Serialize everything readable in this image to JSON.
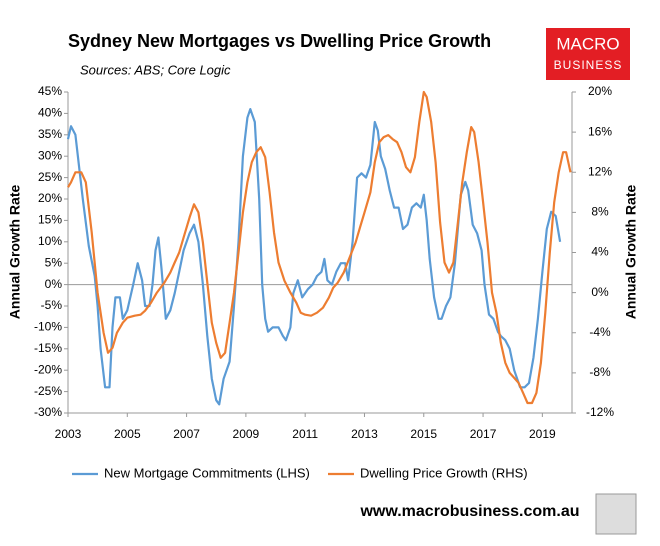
{
  "chart_data": {
    "type": "line",
    "title": "Sydney New Mortgages vs Dwelling Price Growth",
    "subtitle": "Sources: ABS; Core Logic",
    "logo": [
      "MACRO",
      "BUSINESS"
    ],
    "footer": "www.macrobusiness.com.au",
    "ylabel": "Annual Growth Rate",
    "y2label": "Annual Growth Rate",
    "xlim": [
      2003,
      2020
    ],
    "xticks": [
      2003,
      2005,
      2007,
      2009,
      2011,
      2013,
      2015,
      2017,
      2019
    ],
    "ylim": [
      -30,
      45
    ],
    "yticks": [
      {
        "value": 45,
        "label": "45%"
      },
      {
        "value": 40,
        "label": "40%"
      },
      {
        "value": 35,
        "label": "35%"
      },
      {
        "value": 30,
        "label": "30%"
      },
      {
        "value": 25,
        "label": "25%"
      },
      {
        "value": 20,
        "label": "20%"
      },
      {
        "value": 15,
        "label": "15%"
      },
      {
        "value": 10,
        "label": "10%"
      },
      {
        "value": 5,
        "label": "5%"
      },
      {
        "value": 0,
        "label": "0%"
      },
      {
        "value": -5,
        "label": "-5%"
      },
      {
        "value": -10,
        "label": "-10%"
      },
      {
        "value": -15,
        "label": "-15%"
      },
      {
        "value": -20,
        "label": "-20%"
      },
      {
        "value": -25,
        "label": "-25%"
      },
      {
        "value": -30,
        "label": "-30%"
      }
    ],
    "y2lim": [
      -12,
      20
    ],
    "y2ticks": [
      {
        "value": 20,
        "label": "20%"
      },
      {
        "value": 16,
        "label": "16%"
      },
      {
        "value": 12,
        "label": "12%"
      },
      {
        "value": 8,
        "label": "8%"
      },
      {
        "value": 4,
        "label": "4%"
      },
      {
        "value": 0,
        "label": "0%"
      },
      {
        "value": -4,
        "label": "-4%"
      },
      {
        "value": -8,
        "label": "-8%"
      },
      {
        "value": -12,
        "label": "-12%"
      }
    ],
    "legend": "bottom",
    "series": [
      {
        "name": "New Mortgage Commitments (LHS)",
        "color": "#5b9bd5",
        "axis": "y",
        "x": [
          2003.0,
          2003.1,
          2003.25,
          2003.5,
          2003.7,
          2003.9,
          2004.0,
          2004.1,
          2004.25,
          2004.4,
          2004.5,
          2004.6,
          2004.75,
          2004.85,
          2005.0,
          2005.2,
          2005.35,
          2005.5,
          2005.6,
          2005.75,
          2005.85,
          2005.95,
          2006.05,
          2006.15,
          2006.3,
          2006.45,
          2006.6,
          2006.75,
          2006.9,
          2007.1,
          2007.25,
          2007.4,
          2007.55,
          2007.7,
          2007.85,
          2008.0,
          2008.1,
          2008.25,
          2008.45,
          2008.6,
          2008.75,
          2008.9,
          2009.05,
          2009.15,
          2009.3,
          2009.45,
          2009.55,
          2009.65,
          2009.75,
          2009.9,
          2010.1,
          2010.25,
          2010.35,
          2010.5,
          2010.6,
          2010.75,
          2010.9,
          2011.1,
          2011.25,
          2011.4,
          2011.55,
          2011.65,
          2011.75,
          2011.9,
          2012.05,
          2012.2,
          2012.35,
          2012.45,
          2012.6,
          2012.75,
          2012.9,
          2013.05,
          2013.2,
          2013.35,
          2013.45,
          2013.55,
          2013.7,
          2013.85,
          2014.0,
          2014.15,
          2014.3,
          2014.45,
          2014.6,
          2014.75,
          2014.9,
          2015.0,
          2015.1,
          2015.2,
          2015.35,
          2015.5,
          2015.6,
          2015.75,
          2015.9,
          2016.05,
          2016.25,
          2016.4,
          2016.5,
          2016.65,
          2016.8,
          2016.95,
          2017.05,
          2017.2,
          2017.35,
          2017.5,
          2017.6,
          2017.75,
          2017.9,
          2018.05,
          2018.25,
          2018.4,
          2018.55,
          2018.7,
          2018.85,
          2019.0,
          2019.15,
          2019.3,
          2019.45,
          2019.6
        ],
        "values": [
          34,
          37,
          35,
          20,
          9,
          2,
          -5,
          -15,
          -24,
          -24,
          -10,
          -3,
          -3,
          -8,
          -6,
          0,
          5,
          1,
          -5,
          -5,
          0,
          8,
          11,
          4,
          -8,
          -6,
          -2,
          3,
          8,
          12,
          14,
          10,
          0,
          -12,
          -22,
          -27,
          -28,
          -22,
          -18,
          -5,
          10,
          30,
          39,
          41,
          38,
          20,
          0,
          -8,
          -11,
          -10,
          -10,
          -12,
          -13,
          -10,
          -2,
          1,
          -3,
          -1,
          0,
          2,
          3,
          6,
          1,
          0,
          3,
          5,
          5,
          1,
          10,
          25,
          26,
          25,
          28,
          38,
          36,
          30,
          27,
          22,
          18,
          18,
          13,
          14,
          18,
          19,
          18,
          21,
          15,
          6,
          -3,
          -8,
          -8,
          -5,
          -3,
          5,
          21,
          24,
          22,
          14,
          12,
          8,
          0,
          -7,
          -8,
          -11,
          -12,
          -13,
          -15,
          -20,
          -24,
          -24,
          -23,
          -17,
          -8,
          3,
          13,
          17,
          16,
          10
        ]
      },
      {
        "name": "Dwelling Price Growth (RHS)",
        "color": "#ed7d31",
        "axis": "y2",
        "x": [
          2003.0,
          2003.1,
          2003.25,
          2003.45,
          2003.6,
          2003.8,
          2004.0,
          2004.2,
          2004.35,
          2004.5,
          2004.65,
          2004.85,
          2005.0,
          2005.25,
          2005.45,
          2005.6,
          2005.8,
          2006.0,
          2006.25,
          2006.45,
          2006.6,
          2006.75,
          2006.9,
          2007.1,
          2007.25,
          2007.4,
          2007.55,
          2007.7,
          2007.85,
          2008.0,
          2008.15,
          2008.3,
          2008.45,
          2008.6,
          2008.75,
          2008.9,
          2009.05,
          2009.2,
          2009.35,
          2009.5,
          2009.65,
          2009.8,
          2009.95,
          2010.1,
          2010.3,
          2010.5,
          2010.7,
          2010.85,
          2011.0,
          2011.2,
          2011.4,
          2011.6,
          2011.8,
          2011.95,
          2012.1,
          2012.3,
          2012.5,
          2012.7,
          2012.85,
          2013.0,
          2013.2,
          2013.35,
          2013.5,
          2013.65,
          2013.8,
          2013.95,
          2014.1,
          2014.25,
          2014.4,
          2014.55,
          2014.7,
          2014.85,
          2015.0,
          2015.1,
          2015.25,
          2015.4,
          2015.55,
          2015.7,
          2015.85,
          2016.0,
          2016.15,
          2016.3,
          2016.45,
          2016.6,
          2016.7,
          2016.85,
          2017.0,
          2017.15,
          2017.3,
          2017.45,
          2017.6,
          2017.75,
          2017.9,
          2018.05,
          2018.2,
          2018.35,
          2018.5,
          2018.65,
          2018.8,
          2018.95,
          2019.1,
          2019.25,
          2019.4,
          2019.55,
          2019.7,
          2019.8,
          2019.95
        ],
        "values": [
          10.5,
          11,
          12,
          12,
          11,
          6,
          0,
          -4,
          -6,
          -5.5,
          -4,
          -3,
          -2.5,
          -2.3,
          -2.2,
          -1.8,
          -1,
          0,
          1,
          2,
          3,
          4,
          5.5,
          7.5,
          8.8,
          8,
          5,
          1,
          -3,
          -5,
          -6.5,
          -6,
          -3,
          0,
          4,
          8,
          11,
          13,
          14,
          14.5,
          13.5,
          10,
          6,
          3,
          1.2,
          0,
          -1,
          -2,
          -2.2,
          -2.3,
          -2,
          -1.5,
          -0.5,
          0.5,
          1,
          2,
          3.5,
          5,
          6.5,
          8,
          10,
          13,
          15,
          15.5,
          15.7,
          15.3,
          15,
          14,
          12.5,
          12,
          13.5,
          17,
          20,
          19.5,
          17,
          13,
          7,
          3,
          2,
          3,
          7,
          11,
          14,
          16.5,
          16,
          13,
          9,
          5,
          0,
          -2,
          -5,
          -7,
          -8,
          -8.5,
          -9,
          -10,
          -11,
          -11,
          -10,
          -7,
          -2,
          4,
          9,
          12,
          14,
          14,
          12
        ]
      }
    ]
  }
}
